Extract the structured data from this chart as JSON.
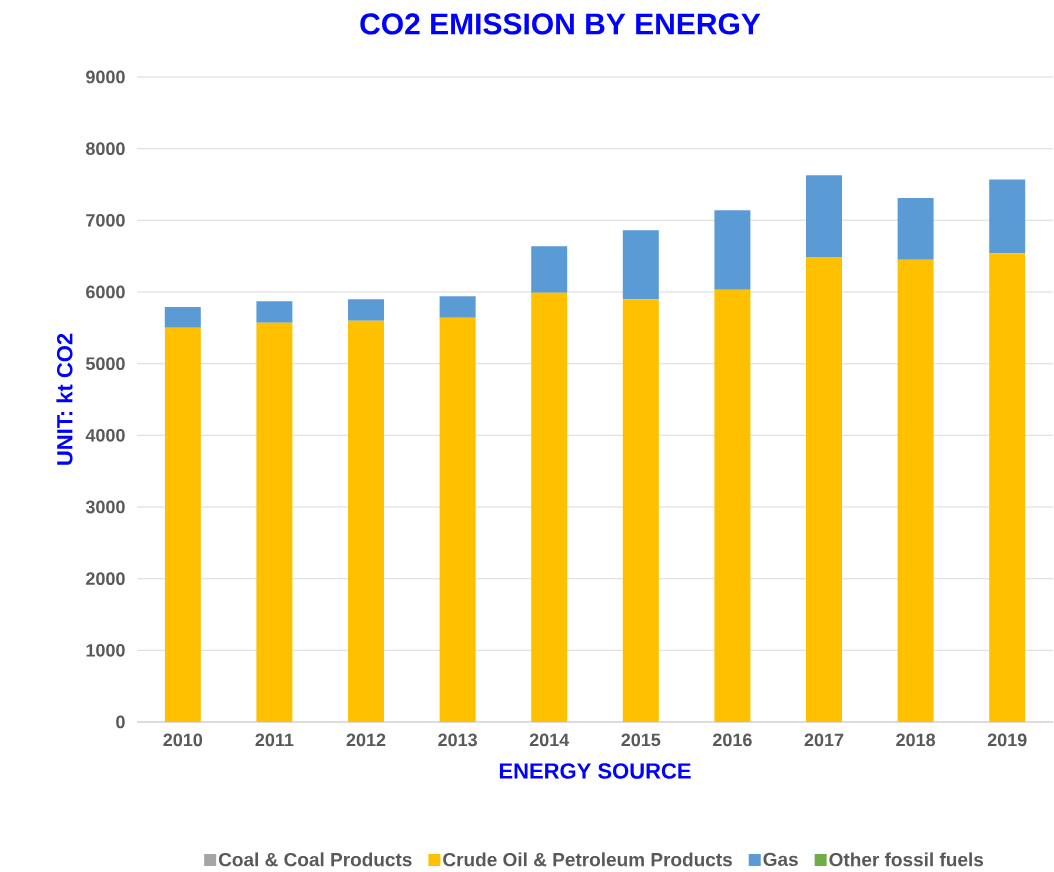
{
  "chart_data": {
    "type": "bar",
    "stacked": true,
    "title": "CO2 EMISSION BY ENERGY",
    "xlabel": "ENERGY SOURCE",
    "ylabel": "UNIT: kt CO2",
    "categories": [
      "2010",
      "2011",
      "2012",
      "2013",
      "2014",
      "2015",
      "2016",
      "2017",
      "2018",
      "2019"
    ],
    "series": [
      {
        "name": "Coal & Coal Products",
        "color": "#a5a5a5",
        "values": [
          0,
          0,
          0,
          0,
          0,
          0,
          0,
          0,
          0,
          0
        ]
      },
      {
        "name": "Crude Oil & Petroleum Products",
        "color": "#ffc000",
        "values": [
          5500,
          5570,
          5600,
          5640,
          5990,
          5900,
          6030,
          6490,
          6450,
          6540
        ]
      },
      {
        "name": "Gas",
        "color": "#5b9bd5",
        "values": [
          290,
          300,
          300,
          300,
          650,
          960,
          1110,
          1140,
          860,
          1030
        ]
      },
      {
        "name": "Other fossil fuels",
        "color": "#70ad47",
        "values": [
          0,
          0,
          0,
          0,
          0,
          0,
          0,
          0,
          0,
          0
        ]
      }
    ],
    "ylim": [
      0,
      9000
    ],
    "yticks": [
      0,
      1000,
      2000,
      3000,
      4000,
      5000,
      6000,
      7000,
      8000,
      9000
    ],
    "grid": "y",
    "legend": "bottom"
  }
}
